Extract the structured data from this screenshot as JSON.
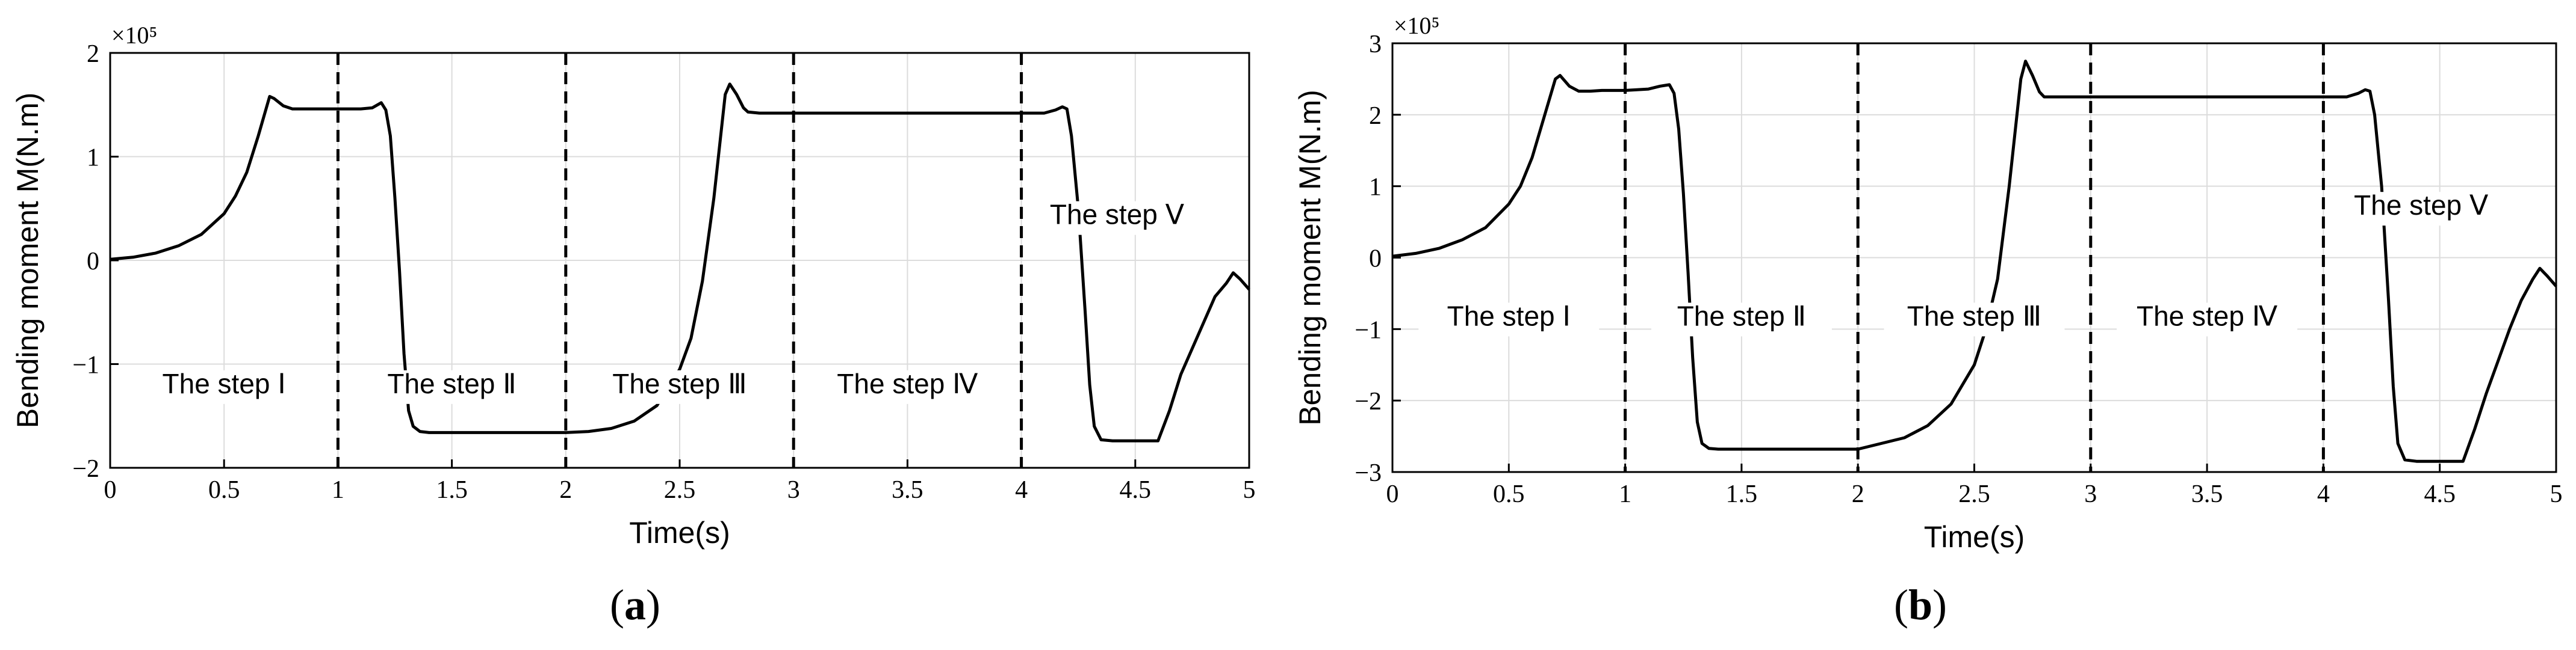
{
  "chart_data": [
    {
      "type": "line",
      "panel_label": "(a)",
      "xlabel": "Time(s)",
      "ylabel": "Bending moment M(N.m)",
      "exponent_label": "×10⁵",
      "xlim": [
        0,
        5
      ],
      "ylim": [
        -2,
        2
      ],
      "xticks": [
        "0",
        "0.5",
        "1",
        "1.5",
        "2",
        "2.5",
        "3",
        "3.5",
        "4",
        "4.5",
        "5"
      ],
      "yticks": [
        "-2",
        "-1",
        "0",
        "1",
        "2"
      ],
      "grid": true,
      "step_boundaries": [
        1,
        2,
        3,
        4
      ],
      "annotations": [
        {
          "text": "The step Ⅰ",
          "x": 0.5,
          "y": -1.28
        },
        {
          "text": "The step Ⅱ",
          "x": 1.5,
          "y": -1.28
        },
        {
          "text": "The step Ⅲ",
          "x": 2.5,
          "y": -1.28
        },
        {
          "text": "The step Ⅳ",
          "x": 3.5,
          "y": -1.28
        },
        {
          "text": "The step Ⅴ",
          "x": 4.42,
          "y": 0.35
        }
      ],
      "series": [
        {
          "x": [
            0,
            0.1,
            0.2,
            0.3,
            0.4,
            0.5,
            0.55,
            0.6,
            0.65,
            0.7,
            0.72,
            0.76,
            0.8,
            0.85,
            0.9,
            1.0,
            1.1,
            1.15,
            1.19,
            1.21,
            1.23,
            1.25,
            1.27,
            1.29,
            1.31,
            1.33,
            1.36,
            1.4,
            1.5,
            1.6,
            1.8,
            2.0,
            2.1,
            2.2,
            2.3,
            2.4,
            2.5,
            2.55,
            2.6,
            2.65,
            2.7,
            2.72,
            2.75,
            2.78,
            2.8,
            2.85,
            2.9,
            3.0,
            3.5,
            4.0,
            4.1,
            4.15,
            4.18,
            4.2,
            4.22,
            4.25,
            4.28,
            4.3,
            4.32,
            4.35,
            4.4,
            4.5,
            4.6,
            4.65,
            4.7,
            4.75,
            4.8,
            4.85,
            4.9,
            4.93,
            4.96,
            5.0
          ],
          "y": [
            0.01,
            0.03,
            0.07,
            0.14,
            0.25,
            0.45,
            0.62,
            0.85,
            1.2,
            1.58,
            1.56,
            1.49,
            1.46,
            1.46,
            1.46,
            1.46,
            1.46,
            1.47,
            1.52,
            1.45,
            1.2,
            0.6,
            -0.1,
            -0.9,
            -1.45,
            -1.6,
            -1.65,
            -1.66,
            -1.66,
            -1.66,
            -1.66,
            -1.66,
            -1.65,
            -1.62,
            -1.55,
            -1.4,
            -1.05,
            -0.75,
            -0.2,
            0.6,
            1.6,
            1.7,
            1.6,
            1.47,
            1.43,
            1.42,
            1.42,
            1.42,
            1.42,
            1.42,
            1.42,
            1.45,
            1.48,
            1.46,
            1.2,
            0.5,
            -0.5,
            -1.2,
            -1.6,
            -1.73,
            -1.74,
            -1.74,
            -1.74,
            -1.45,
            -1.1,
            -0.85,
            -0.6,
            -0.35,
            -0.22,
            -0.12,
            -0.18,
            -0.28
          ]
        }
      ]
    },
    {
      "type": "line",
      "panel_label": "(b)",
      "xlabel": "Time(s)",
      "ylabel": "Bending moment M(N.m)",
      "exponent_label": "×10⁵",
      "xlim": [
        0,
        5
      ],
      "ylim": [
        -3,
        3
      ],
      "xticks": [
        "0",
        "0.5",
        "1",
        "1.5",
        "2",
        "2.5",
        "3",
        "3.5",
        "4",
        "4.5",
        "5"
      ],
      "yticks": [
        "-3",
        "-2",
        "-1",
        "0",
        "1",
        "2",
        "3"
      ],
      "grid": true,
      "step_boundaries": [
        1,
        2,
        3,
        4
      ],
      "annotations": [
        {
          "text": "The step Ⅰ",
          "x": 0.5,
          "y": -0.95
        },
        {
          "text": "The step Ⅱ",
          "x": 1.5,
          "y": -0.95
        },
        {
          "text": "The step Ⅲ",
          "x": 2.5,
          "y": -0.95
        },
        {
          "text": "The step Ⅳ",
          "x": 3.5,
          "y": -0.95
        },
        {
          "text": "The step Ⅴ",
          "x": 4.42,
          "y": 0.6
        }
      ],
      "series": [
        {
          "x": [
            0,
            0.1,
            0.2,
            0.3,
            0.4,
            0.5,
            0.55,
            0.6,
            0.65,
            0.7,
            0.72,
            0.76,
            0.8,
            0.85,
            0.9,
            1.0,
            1.1,
            1.15,
            1.19,
            1.21,
            1.23,
            1.25,
            1.27,
            1.29,
            1.31,
            1.33,
            1.36,
            1.4,
            1.5,
            1.6,
            1.8,
            2.0,
            2.1,
            2.2,
            2.3,
            2.4,
            2.5,
            2.55,
            2.6,
            2.65,
            2.7,
            2.72,
            2.75,
            2.78,
            2.8,
            2.85,
            2.9,
            3.0,
            3.5,
            4.0,
            4.1,
            4.15,
            4.18,
            4.2,
            4.22,
            4.25,
            4.28,
            4.3,
            4.32,
            4.35,
            4.4,
            4.5,
            4.6,
            4.65,
            4.7,
            4.75,
            4.8,
            4.85,
            4.9,
            4.93,
            4.96,
            5.0
          ],
          "y": [
            0.02,
            0.06,
            0.13,
            0.25,
            0.42,
            0.75,
            1.0,
            1.4,
            1.95,
            2.5,
            2.55,
            2.4,
            2.33,
            2.33,
            2.34,
            2.34,
            2.36,
            2.4,
            2.42,
            2.3,
            1.8,
            0.9,
            -0.2,
            -1.4,
            -2.3,
            -2.6,
            -2.67,
            -2.68,
            -2.68,
            -2.68,
            -2.68,
            -2.68,
            -2.6,
            -2.52,
            -2.35,
            -2.05,
            -1.5,
            -1.0,
            -0.3,
            1.0,
            2.5,
            2.75,
            2.55,
            2.32,
            2.25,
            2.25,
            2.25,
            2.25,
            2.25,
            2.25,
            2.25,
            2.3,
            2.35,
            2.33,
            2.0,
            1.0,
            -0.6,
            -1.8,
            -2.6,
            -2.83,
            -2.85,
            -2.85,
            -2.85,
            -2.4,
            -1.9,
            -1.45,
            -1.0,
            -0.6,
            -0.3,
            -0.15,
            -0.25,
            -0.4
          ]
        }
      ]
    }
  ]
}
